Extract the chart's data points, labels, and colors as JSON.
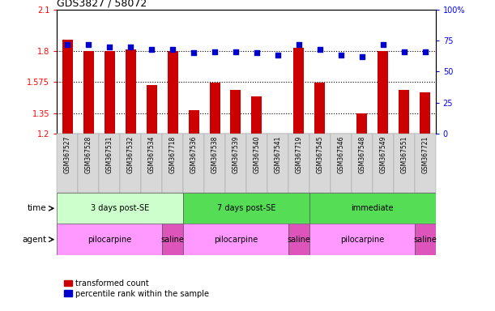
{
  "title": "GDS3827 / 58072",
  "samples": [
    "GSM367527",
    "GSM367528",
    "GSM367531",
    "GSM367532",
    "GSM367534",
    "GSM367718",
    "GSM367536",
    "GSM367538",
    "GSM367539",
    "GSM367540",
    "GSM367541",
    "GSM367719",
    "GSM367545",
    "GSM367546",
    "GSM367548",
    "GSM367549",
    "GSM367551",
    "GSM367721"
  ],
  "red_values": [
    1.88,
    1.8,
    1.8,
    1.81,
    1.55,
    1.8,
    1.37,
    1.57,
    1.52,
    1.47,
    1.2,
    1.82,
    1.57,
    1.2,
    1.35,
    1.8,
    1.52,
    1.5
  ],
  "blue_values": [
    72,
    72,
    70,
    70,
    68,
    68,
    65,
    66,
    66,
    65,
    63,
    72,
    68,
    63,
    62,
    72,
    66,
    66
  ],
  "ylim_left": [
    1.2,
    2.1
  ],
  "ylim_right": [
    0,
    100
  ],
  "yticks_left": [
    1.2,
    1.35,
    1.575,
    1.8,
    2.1
  ],
  "yticks_left_labels": [
    "1.2",
    "1.35",
    "1.575",
    "1.8",
    "2.1"
  ],
  "yticks_right": [
    0,
    25,
    50,
    75,
    100
  ],
  "yticks_right_labels": [
    "0",
    "25",
    "50",
    "75",
    "100%"
  ],
  "hlines": [
    1.35,
    1.575,
    1.8
  ],
  "bar_color": "#cc0000",
  "dot_color": "#0000cc",
  "bar_width": 0.5,
  "bar_bottom": 1.2,
  "legend_red_label": "transformed count",
  "legend_blue_label": "percentile rank within the sample",
  "time_label": "time",
  "agent_label": "agent",
  "time_groups": [
    {
      "label": "3 days post-SE",
      "start": 0,
      "end": 6,
      "color": "#ccffcc"
    },
    {
      "label": "7 days post-SE",
      "start": 6,
      "end": 12,
      "color": "#55dd55"
    },
    {
      "label": "immediate",
      "start": 12,
      "end": 18,
      "color": "#55dd55"
    }
  ],
  "agent_groups": [
    {
      "label": "pilocarpine",
      "start": 0,
      "end": 5,
      "color": "#ff99ff"
    },
    {
      "label": "saline",
      "start": 5,
      "end": 6,
      "color": "#dd55bb"
    },
    {
      "label": "pilocarpine",
      "start": 6,
      "end": 11,
      "color": "#ff99ff"
    },
    {
      "label": "saline",
      "start": 11,
      "end": 12,
      "color": "#dd55bb"
    },
    {
      "label": "pilocarpine",
      "start": 12,
      "end": 17,
      "color": "#ff99ff"
    },
    {
      "label": "saline",
      "start": 17,
      "end": 18,
      "color": "#dd55bb"
    }
  ]
}
